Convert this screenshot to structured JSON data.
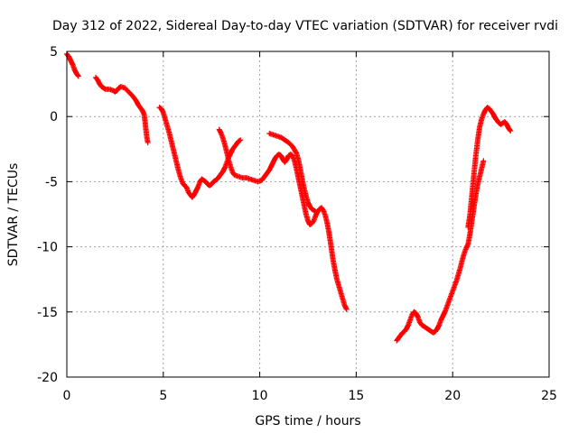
{
  "chart_data": {
    "type": "scatter",
    "title": "Day 312 of 2022, Sidereal Day-to-day VTEC variation (SDTVAR) for receiver rvdi",
    "xlabel": "GPS time / hours",
    "ylabel": "SDTVAR / TECUs",
    "xlim": [
      0,
      25
    ],
    "ylim": [
      -20,
      5
    ],
    "xticks": [
      "0",
      "5",
      "10",
      "15",
      "20",
      "25"
    ],
    "yticks": [
      "5",
      "0",
      "-5",
      "-10",
      "-15",
      "-20"
    ],
    "grid": true,
    "marker": "plus",
    "color": "#ff0000",
    "series": [
      {
        "name": "SDTVAR",
        "segments": [
          [
            [
              0.0,
              4.8
            ],
            [
              0.1,
              4.6
            ],
            [
              0.2,
              4.3
            ],
            [
              0.3,
              4.0
            ],
            [
              0.4,
              3.6
            ],
            [
              0.5,
              3.3
            ],
            [
              0.6,
              3.1
            ]
          ],
          [
            [
              1.5,
              3.0
            ],
            [
              1.6,
              2.8
            ],
            [
              1.7,
              2.5
            ],
            [
              1.8,
              2.3
            ],
            [
              1.9,
              2.2
            ],
            [
              2.0,
              2.1
            ],
            [
              2.2,
              2.1
            ],
            [
              2.4,
              2.0
            ],
            [
              2.5,
              1.9
            ],
            [
              2.6,
              2.0
            ],
            [
              2.7,
              2.2
            ],
            [
              2.8,
              2.3
            ],
            [
              3.0,
              2.2
            ],
            [
              3.2,
              1.9
            ],
            [
              3.4,
              1.6
            ],
            [
              3.6,
              1.2
            ],
            [
              3.7,
              0.9
            ],
            [
              3.8,
              0.7
            ],
            [
              3.9,
              0.5
            ],
            [
              4.0,
              0.2
            ],
            [
              4.05,
              -0.3
            ],
            [
              4.1,
              -1.0
            ],
            [
              4.15,
              -1.6
            ],
            [
              4.2,
              -2.0
            ]
          ],
          [
            [
              4.8,
              0.7
            ],
            [
              4.9,
              0.6
            ],
            [
              5.0,
              0.3
            ],
            [
              5.1,
              -0.2
            ],
            [
              5.2,
              -0.7
            ],
            [
              5.3,
              -1.2
            ],
            [
              5.4,
              -1.8
            ],
            [
              5.5,
              -2.4
            ],
            [
              5.6,
              -3.0
            ],
            [
              5.7,
              -3.6
            ],
            [
              5.8,
              -4.2
            ],
            [
              5.9,
              -4.7
            ],
            [
              6.0,
              -5.1
            ],
            [
              6.1,
              -5.3
            ],
            [
              6.2,
              -5.4
            ],
            [
              6.3,
              -5.8
            ],
            [
              6.4,
              -6.0
            ],
            [
              6.5,
              -6.2
            ],
            [
              6.6,
              -6.0
            ],
            [
              6.7,
              -5.7
            ],
            [
              6.8,
              -5.4
            ],
            [
              6.9,
              -5.0
            ],
            [
              7.0,
              -4.8
            ],
            [
              7.1,
              -4.9
            ],
            [
              7.2,
              -5.0
            ],
            [
              7.3,
              -5.2
            ],
            [
              7.4,
              -5.3
            ],
            [
              7.5,
              -5.2
            ],
            [
              7.6,
              -5.0
            ],
            [
              7.7,
              -4.9
            ],
            [
              7.8,
              -4.8
            ],
            [
              7.9,
              -4.6
            ],
            [
              8.0,
              -4.4
            ],
            [
              8.1,
              -4.2
            ],
            [
              8.2,
              -3.9
            ],
            [
              8.3,
              -3.5
            ],
            [
              8.4,
              -3.1
            ],
            [
              8.5,
              -2.8
            ],
            [
              8.6,
              -2.5
            ],
            [
              8.7,
              -2.3
            ],
            [
              8.8,
              -2.1
            ],
            [
              8.9,
              -1.9
            ],
            [
              9.0,
              -1.8
            ]
          ],
          [
            [
              7.9,
              -1.0
            ],
            [
              8.0,
              -1.3
            ],
            [
              8.1,
              -1.7
            ],
            [
              8.2,
              -2.2
            ],
            [
              8.3,
              -2.8
            ],
            [
              8.4,
              -3.4
            ],
            [
              8.5,
              -3.9
            ],
            [
              8.6,
              -4.3
            ],
            [
              8.7,
              -4.5
            ],
            [
              8.9,
              -4.6
            ],
            [
              9.1,
              -4.7
            ],
            [
              9.3,
              -4.7
            ],
            [
              9.5,
              -4.8
            ],
            [
              9.7,
              -4.9
            ],
            [
              9.9,
              -5.0
            ],
            [
              10.1,
              -4.9
            ],
            [
              10.2,
              -4.7
            ],
            [
              10.3,
              -4.5
            ],
            [
              10.4,
              -4.3
            ],
            [
              10.5,
              -4.1
            ],
            [
              10.6,
              -3.8
            ],
            [
              10.7,
              -3.5
            ],
            [
              10.8,
              -3.2
            ],
            [
              10.9,
              -3.0
            ],
            [
              11.0,
              -2.9
            ],
            [
              11.1,
              -3.0
            ],
            [
              11.2,
              -3.3
            ],
            [
              11.3,
              -3.5
            ],
            [
              11.4,
              -3.3
            ],
            [
              11.5,
              -3.0
            ],
            [
              11.6,
              -2.9
            ],
            [
              11.7,
              -3.0
            ],
            [
              11.8,
              -3.4
            ],
            [
              11.9,
              -4.0
            ],
            [
              12.0,
              -4.7
            ],
            [
              12.1,
              -5.4
            ],
            [
              12.2,
              -6.1
            ],
            [
              12.3,
              -6.8
            ],
            [
              12.4,
              -7.5
            ],
            [
              12.5,
              -8.0
            ],
            [
              12.6,
              -8.3
            ],
            [
              12.7,
              -8.2
            ],
            [
              12.8,
              -8.0
            ],
            [
              12.9,
              -7.6
            ],
            [
              13.0,
              -7.3
            ],
            [
              13.1,
              -7.1
            ],
            [
              13.2,
              -7.0
            ],
            [
              13.3,
              -7.2
            ],
            [
              13.4,
              -7.6
            ],
            [
              13.5,
              -8.2
            ],
            [
              13.6,
              -9.0
            ],
            [
              13.7,
              -10.0
            ],
            [
              13.8,
              -11.0
            ],
            [
              13.9,
              -11.8
            ],
            [
              14.0,
              -12.5
            ],
            [
              14.1,
              -13.0
            ],
            [
              14.2,
              -13.5
            ],
            [
              14.3,
              -14.0
            ],
            [
              14.4,
              -14.5
            ],
            [
              14.5,
              -14.8
            ]
          ],
          [
            [
              10.5,
              -1.3
            ],
            [
              10.7,
              -1.4
            ],
            [
              10.9,
              -1.5
            ],
            [
              11.1,
              -1.6
            ],
            [
              11.3,
              -1.8
            ],
            [
              11.5,
              -2.0
            ],
            [
              11.7,
              -2.3
            ],
            [
              11.9,
              -2.8
            ],
            [
              12.0,
              -3.3
            ],
            [
              12.1,
              -4.0
            ],
            [
              12.2,
              -4.8
            ],
            [
              12.3,
              -5.5
            ],
            [
              12.4,
              -6.1
            ],
            [
              12.5,
              -6.6
            ],
            [
              12.6,
              -6.9
            ],
            [
              12.7,
              -7.1
            ],
            [
              12.8,
              -7.2
            ],
            [
              12.9,
              -7.3
            ]
          ],
          [
            [
              17.1,
              -17.2
            ],
            [
              17.2,
              -17.0
            ],
            [
              17.3,
              -16.8
            ],
            [
              17.4,
              -16.6
            ],
            [
              17.5,
              -16.5
            ],
            [
              17.6,
              -16.3
            ],
            [
              17.7,
              -16.0
            ],
            [
              17.8,
              -15.6
            ],
            [
              17.9,
              -15.2
            ],
            [
              18.0,
              -15.0
            ],
            [
              18.1,
              -15.1
            ],
            [
              18.2,
              -15.4
            ],
            [
              18.3,
              -15.8
            ],
            [
              18.4,
              -16.0
            ],
            [
              18.5,
              -16.1
            ],
            [
              18.6,
              -16.2
            ],
            [
              18.7,
              -16.3
            ],
            [
              18.8,
              -16.4
            ],
            [
              18.9,
              -16.5
            ],
            [
              19.0,
              -16.6
            ],
            [
              19.1,
              -16.5
            ],
            [
              19.2,
              -16.3
            ],
            [
              19.3,
              -16.0
            ],
            [
              19.4,
              -15.6
            ],
            [
              19.5,
              -15.3
            ],
            [
              19.6,
              -15.0
            ],
            [
              19.7,
              -14.6
            ],
            [
              19.8,
              -14.2
            ],
            [
              19.9,
              -13.8
            ],
            [
              20.0,
              -13.4
            ],
            [
              20.1,
              -13.0
            ],
            [
              20.2,
              -12.6
            ],
            [
              20.3,
              -12.1
            ],
            [
              20.4,
              -11.6
            ],
            [
              20.5,
              -11.0
            ],
            [
              20.6,
              -10.5
            ],
            [
              20.7,
              -10.1
            ],
            [
              20.8,
              -9.8
            ],
            [
              20.9,
              -9.0
            ],
            [
              21.0,
              -8.0
            ],
            [
              21.1,
              -7.0
            ],
            [
              21.2,
              -6.0
            ],
            [
              21.3,
              -5.2
            ],
            [
              21.4,
              -4.6
            ],
            [
              21.5,
              -4.0
            ],
            [
              21.6,
              -3.4
            ]
          ],
          [
            [
              20.8,
              -8.5
            ],
            [
              20.9,
              -7.5
            ],
            [
              21.0,
              -6.0
            ],
            [
              21.1,
              -4.5
            ],
            [
              21.2,
              -3.0
            ],
            [
              21.3,
              -1.8
            ],
            [
              21.4,
              -0.8
            ],
            [
              21.5,
              -0.2
            ],
            [
              21.6,
              0.2
            ],
            [
              21.7,
              0.5
            ],
            [
              21.8,
              0.7
            ],
            [
              21.9,
              0.6
            ],
            [
              22.0,
              0.4
            ],
            [
              22.1,
              0.2
            ],
            [
              22.2,
              -0.1
            ],
            [
              22.3,
              -0.3
            ],
            [
              22.4,
              -0.5
            ],
            [
              22.5,
              -0.6
            ],
            [
              22.6,
              -0.5
            ],
            [
              22.7,
              -0.4
            ],
            [
              22.8,
              -0.6
            ],
            [
              22.9,
              -0.9
            ],
            [
              23.0,
              -1.1
            ]
          ]
        ]
      }
    ]
  }
}
